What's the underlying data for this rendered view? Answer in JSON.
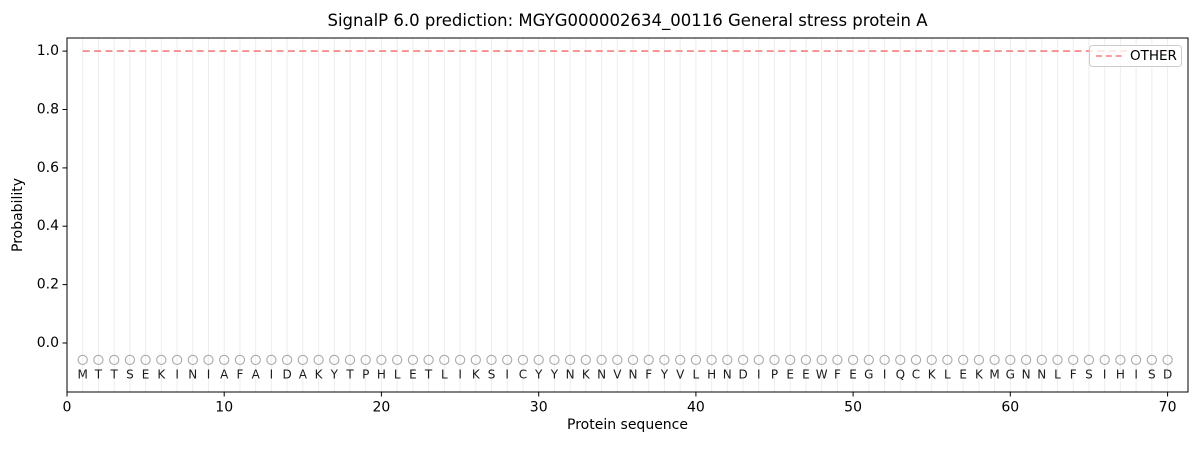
{
  "chart_data": {
    "type": "line",
    "title": "SignalP 6.0 prediction: MGYG000002634_00116 General stress protein A",
    "xlabel": "Protein sequence",
    "ylabel": "Probability",
    "xlim": [
      0,
      71.3
    ],
    "ylim": [
      -0.168,
      1.045
    ],
    "x_ticks": [
      0,
      10,
      20,
      30,
      40,
      50,
      60,
      70
    ],
    "y_ticks": [
      0.0,
      0.2,
      0.4,
      0.6,
      0.8,
      1.0
    ],
    "grid": "vertical-per-residue",
    "grid_color": "#ededed",
    "spine_color": "#000000",
    "background_color": "#ffffff",
    "sequence": "MTTSEKINIAFAIDAKYTPHLETLIKSICYYNKNVNFYVLHNDIPEEWFEGIQCKLEKMGNNLFSIHISD",
    "sequence_length": 70,
    "marker_row": {
      "shape": "circle",
      "color": "#a9a9a9",
      "y": -0.058
    },
    "sequence_label_y": -0.108,
    "sequence_letter_color": "#1a1a1a",
    "series": [
      {
        "name": "OTHER",
        "line_style": "dashed",
        "color": "#f57f7f",
        "x_from": 1,
        "x_step": 1,
        "values": [
          1.0,
          1.0,
          1.0,
          1.0,
          1.0,
          1.0,
          1.0,
          1.0,
          1.0,
          1.0,
          1.0,
          1.0,
          1.0,
          1.0,
          1.0,
          1.0,
          1.0,
          1.0,
          1.0,
          1.0,
          1.0,
          1.0,
          1.0,
          1.0,
          1.0,
          1.0,
          1.0,
          1.0,
          1.0,
          1.0,
          1.0,
          1.0,
          1.0,
          1.0,
          1.0,
          1.0,
          1.0,
          1.0,
          1.0,
          1.0,
          1.0,
          1.0,
          1.0,
          1.0,
          1.0,
          1.0,
          1.0,
          1.0,
          1.0,
          1.0,
          1.0,
          1.0,
          1.0,
          1.0,
          1.0,
          1.0,
          1.0,
          1.0,
          1.0,
          1.0,
          1.0,
          1.0,
          1.0,
          1.0,
          1.0,
          1.0,
          1.0,
          1.0,
          1.0,
          1.0
        ]
      }
    ],
    "legend": {
      "position": "upper right",
      "entries": [
        "OTHER"
      ],
      "border_color": "#cccccc",
      "background_color": "#ffffff"
    }
  }
}
